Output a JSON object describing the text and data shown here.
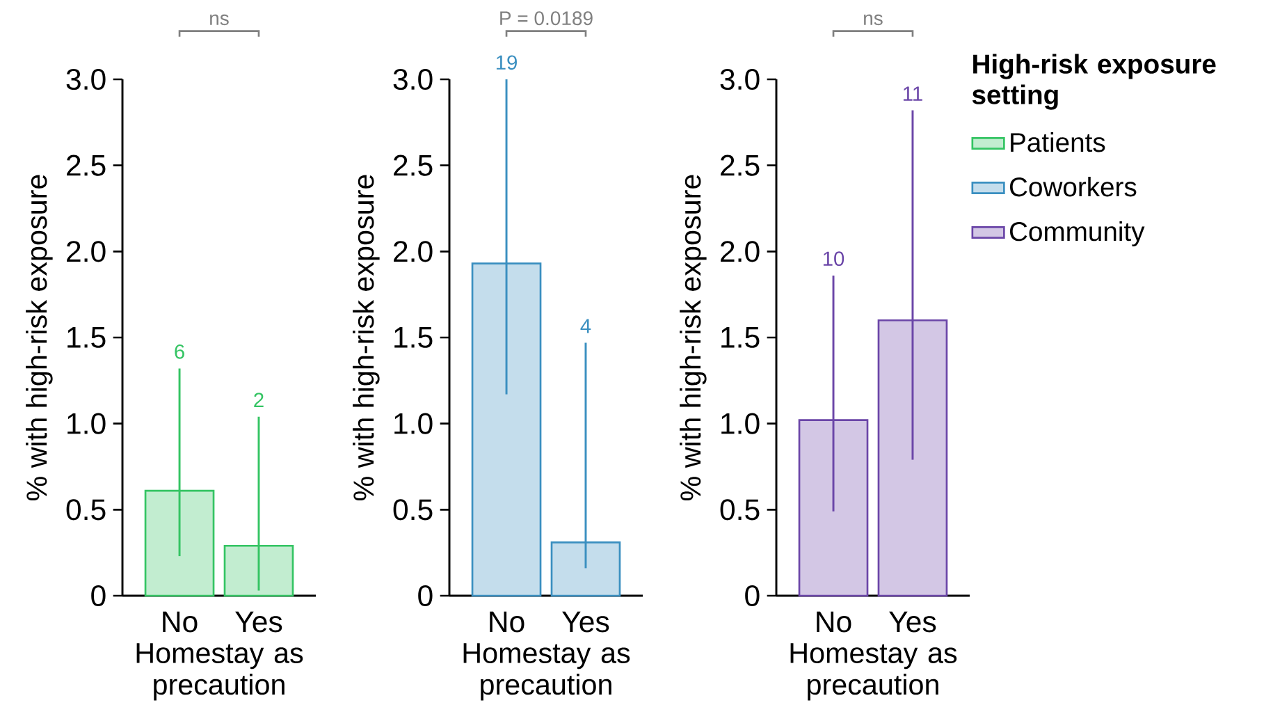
{
  "chart_data": [
    {
      "type": "bar",
      "xlabel": "Homestay as precaution",
      "ylabel": "% with high-risk exposure",
      "categories": [
        "No",
        "Yes"
      ],
      "series": [
        {
          "name": "Patients",
          "color": "#34c463",
          "values": [
            0.61,
            0.29
          ],
          "errors": [
            [
              0.23,
              1.32
            ],
            [
              0.03,
              1.04
            ]
          ]
        }
      ],
      "ylim": [
        0,
        3
      ],
      "yticks": [
        0,
        0.5,
        {
          "value": 1,
          "label": "1.0"
        },
        1.5,
        {
          "value": 2,
          "label": "2.0"
        },
        2.5,
        {
          "value": 3,
          "label": "3.0"
        }
      ],
      "legend": "right",
      "annotations": [
        "ns",
        {
          "text": "6",
          "x": "No",
          "y": 1.32
        },
        {
          "text": "2",
          "x": "Yes",
          "y": 1.04
        }
      ]
    },
    {
      "type": "bar",
      "xlabel": "Homestay as precaution",
      "ylabel": "% with high-risk exposure",
      "categories": [
        "No",
        "Yes"
      ],
      "series": [
        {
          "name": "Coworkers",
          "color": "#3a8fc0",
          "values": [
            1.93,
            0.31
          ],
          "errors": [
            [
              1.17,
              3.0
            ],
            [
              0.16,
              1.47
            ]
          ]
        }
      ],
      "ylim": [
        0,
        3
      ],
      "yticks": [
        0,
        0.5,
        {
          "value": 1,
          "label": "1.0"
        },
        1.5,
        {
          "value": 2,
          "label": "2.0"
        },
        2.5,
        {
          "value": 3,
          "label": "3.0"
        }
      ],
      "legend": "right",
      "annotations": [
        "P = 0.0189",
        {
          "text": "19",
          "x": "No",
          "y": 3.0
        },
        {
          "text": "4",
          "x": "Yes",
          "y": 1.47
        }
      ]
    },
    {
      "type": "bar",
      "xlabel": "Homestay as precaution",
      "ylabel": "% with high-risk exposure",
      "categories": [
        "No",
        "Yes"
      ],
      "series": [
        {
          "name": "Community",
          "color": "#6b46a8",
          "values": [
            1.02,
            1.6
          ],
          "errors": [
            [
              0.49,
              1.86
            ],
            [
              0.79,
              2.82
            ]
          ]
        }
      ],
      "ylim": [
        0,
        3
      ],
      "yticks": [
        0,
        0.5,
        {
          "value": 1,
          "label": "1.0"
        },
        1.5,
        {
          "value": 2,
          "label": "2.0"
        },
        2.5,
        {
          "value": 3,
          "label": "3.0"
        }
      ],
      "legend": "right",
      "legend_title": "High-risk exposure setting",
      "annotations": [
        "ns",
        {
          "text": "10",
          "x": "No",
          "y": 1.86
        },
        {
          "text": "11",
          "x": "Yes",
          "y": 2.82
        }
      ]
    }
  ]
}
